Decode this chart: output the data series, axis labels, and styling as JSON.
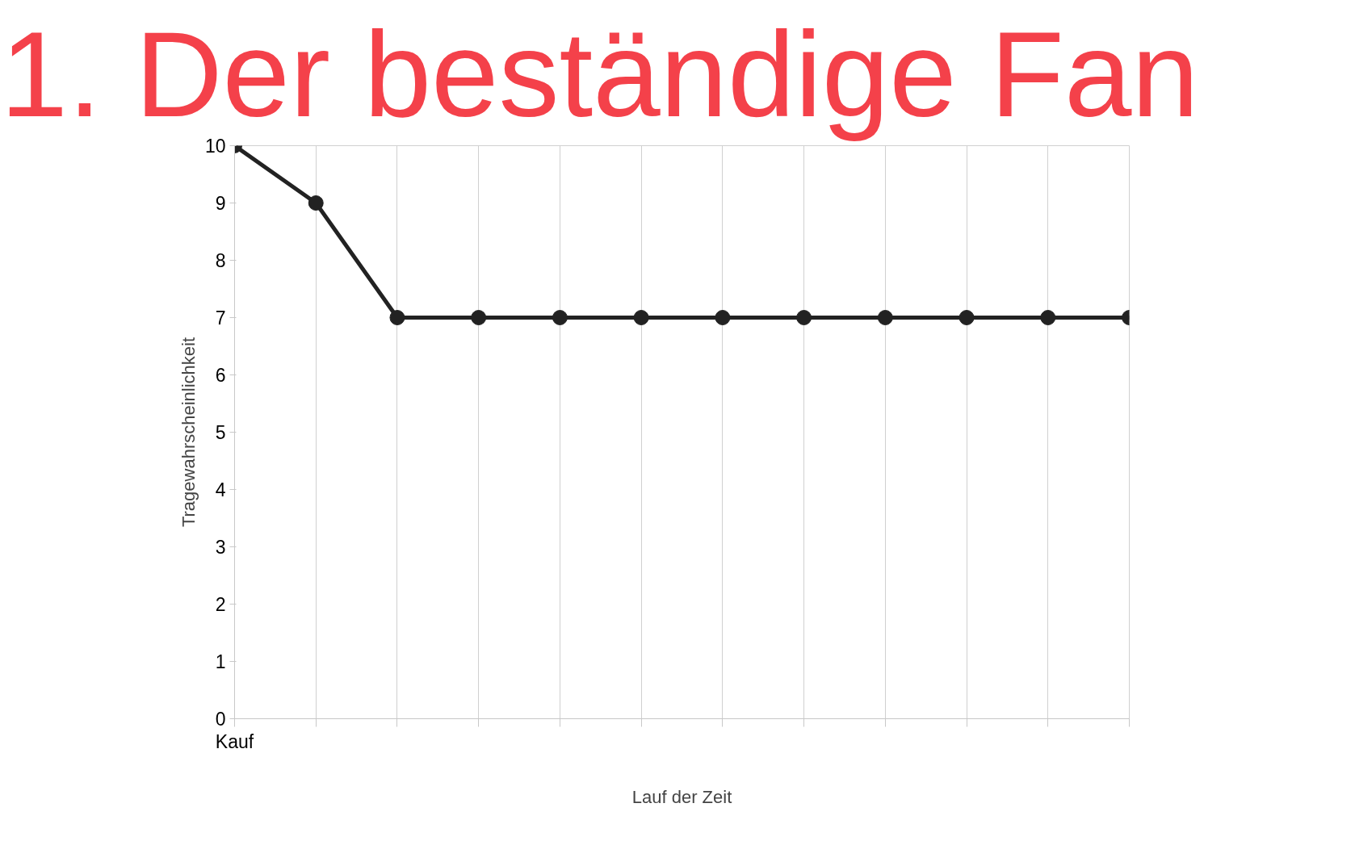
{
  "chart_data": {
    "type": "line",
    "title": "1. Der beständige Fan",
    "xlabel": "Lauf der Zeit",
    "ylabel": "Tragewahrscheinlichkeit",
    "categories": [
      "Kauf",
      null,
      null,
      null,
      null,
      null,
      null,
      null,
      null,
      null,
      null,
      null
    ],
    "values": [
      10,
      9,
      7,
      7,
      7,
      7,
      7,
      7,
      7,
      7,
      7,
      7
    ],
    "color": "#222222",
    "ylim": [
      0,
      10
    ],
    "yticks": [
      0,
      1,
      2,
      3,
      4,
      5,
      6,
      7,
      8,
      9,
      10
    ],
    "grid": "x",
    "marker": "circle",
    "line_style": "solid"
  }
}
